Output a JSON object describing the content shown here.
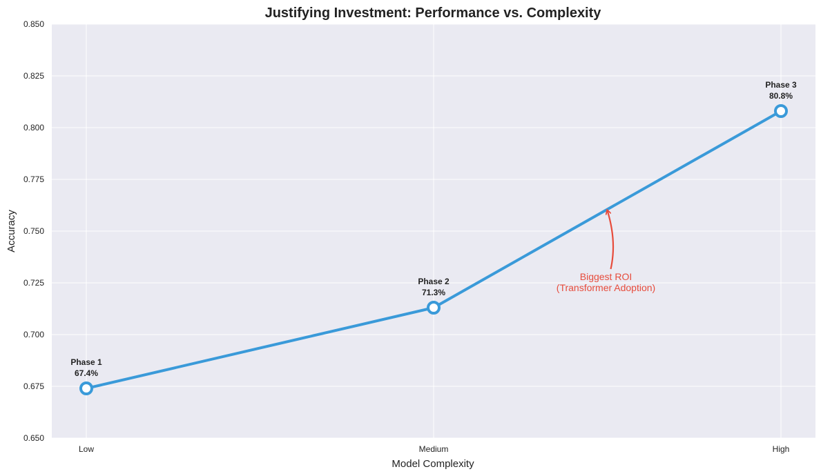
{
  "colors": {
    "background": "#eaeaf2",
    "grid": "#ffffff",
    "line": "#3a9ad9",
    "annotation": "#e74c3c",
    "text": "#222222"
  },
  "chart_data": {
    "type": "line",
    "title": "Justifying Investment: Performance vs. Complexity",
    "xlabel": "Model Complexity",
    "ylabel": "Accuracy",
    "categories": [
      "Low",
      "Medium",
      "High"
    ],
    "ylim": [
      0.65,
      0.85
    ],
    "yticks": [
      "0.650",
      "0.675",
      "0.700",
      "0.725",
      "0.750",
      "0.775",
      "0.800",
      "0.825",
      "0.850"
    ],
    "grid": true,
    "series": [
      {
        "values": [
          0.674,
          0.713,
          0.808
        ],
        "point_labels": [
          {
            "phase": "Phase 1",
            "value": "67.4%"
          },
          {
            "phase": "Phase 2",
            "value": 71.3
          },
          {
            "phase": "Phase 3",
            "value": "80.8%"
          }
        ]
      }
    ],
    "annotation": {
      "lines": [
        "Biggest ROI",
        "(Transformer Adoption)"
      ],
      "arrow_target": {
        "x": 1.5,
        "y": 0.76
      }
    }
  }
}
